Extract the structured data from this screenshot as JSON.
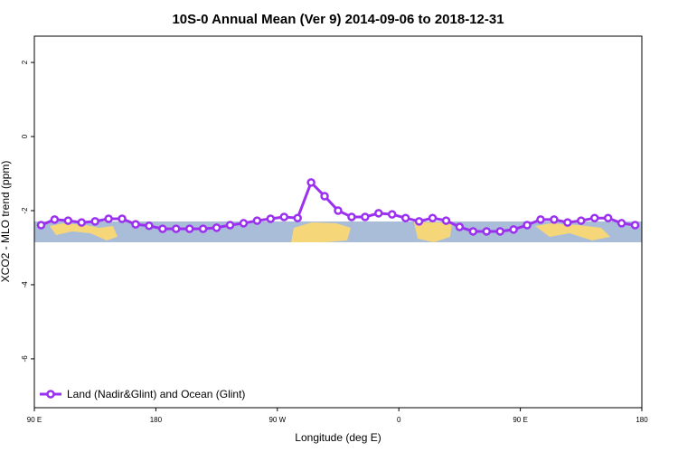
{
  "chart_data": {
    "type": "line",
    "title": "10S-0 Annual Mean (Ver 9)   2014-09-06 to 2018-12-31",
    "x_label": "Longitude (deg E)",
    "y_label": "XCO2 - MLO trend (ppm)",
    "xlim": [
      90,
      540
    ],
    "ylim": [
      -7.32,
      2.71
    ],
    "xticks": [
      {
        "value": 90,
        "label": "90 E"
      },
      180,
      {
        "value": 270,
        "label": "90 W"
      },
      {
        "value": 360,
        "label": "0"
      },
      {
        "value": 450,
        "label": "90 E"
      },
      {
        "value": 540,
        "label": "180"
      }
    ],
    "yticks": [
      2,
      0,
      -2,
      -4,
      -6
    ],
    "legend": "bottom-left",
    "x": [
      95,
      105,
      115,
      125,
      135,
      145,
      155,
      165,
      175,
      185,
      195,
      205,
      215,
      225,
      235,
      245,
      255,
      265,
      275,
      285,
      295,
      305,
      315,
      325,
      335,
      345,
      355,
      365,
      375,
      385,
      395,
      405,
      415,
      425,
      435,
      445,
      455,
      465,
      475,
      485,
      495,
      505,
      515,
      525,
      535
    ],
    "series": [
      {
        "name": "Land (Nadir&Glint) and Ocean (Glint)",
        "color": "#9b30f0",
        "values": [
          -2.39,
          -2.24,
          -2.27,
          -2.32,
          -2.29,
          -2.22,
          -2.22,
          -2.37,
          -2.41,
          -2.49,
          -2.49,
          -2.49,
          -2.49,
          -2.46,
          -2.39,
          -2.34,
          -2.27,
          -2.22,
          -2.17,
          -2.2,
          -1.24,
          -1.61,
          -2.0,
          -2.17,
          -2.17,
          -2.07,
          -2.1,
          -2.2,
          -2.29,
          -2.2,
          -2.27,
          -2.44,
          -2.56,
          -2.56,
          -2.56,
          -2.51,
          -2.39,
          -2.24,
          -2.24,
          -2.32,
          -2.27,
          -2.2,
          -2.2,
          -2.34,
          -2.39
        ]
      }
    ]
  }
}
